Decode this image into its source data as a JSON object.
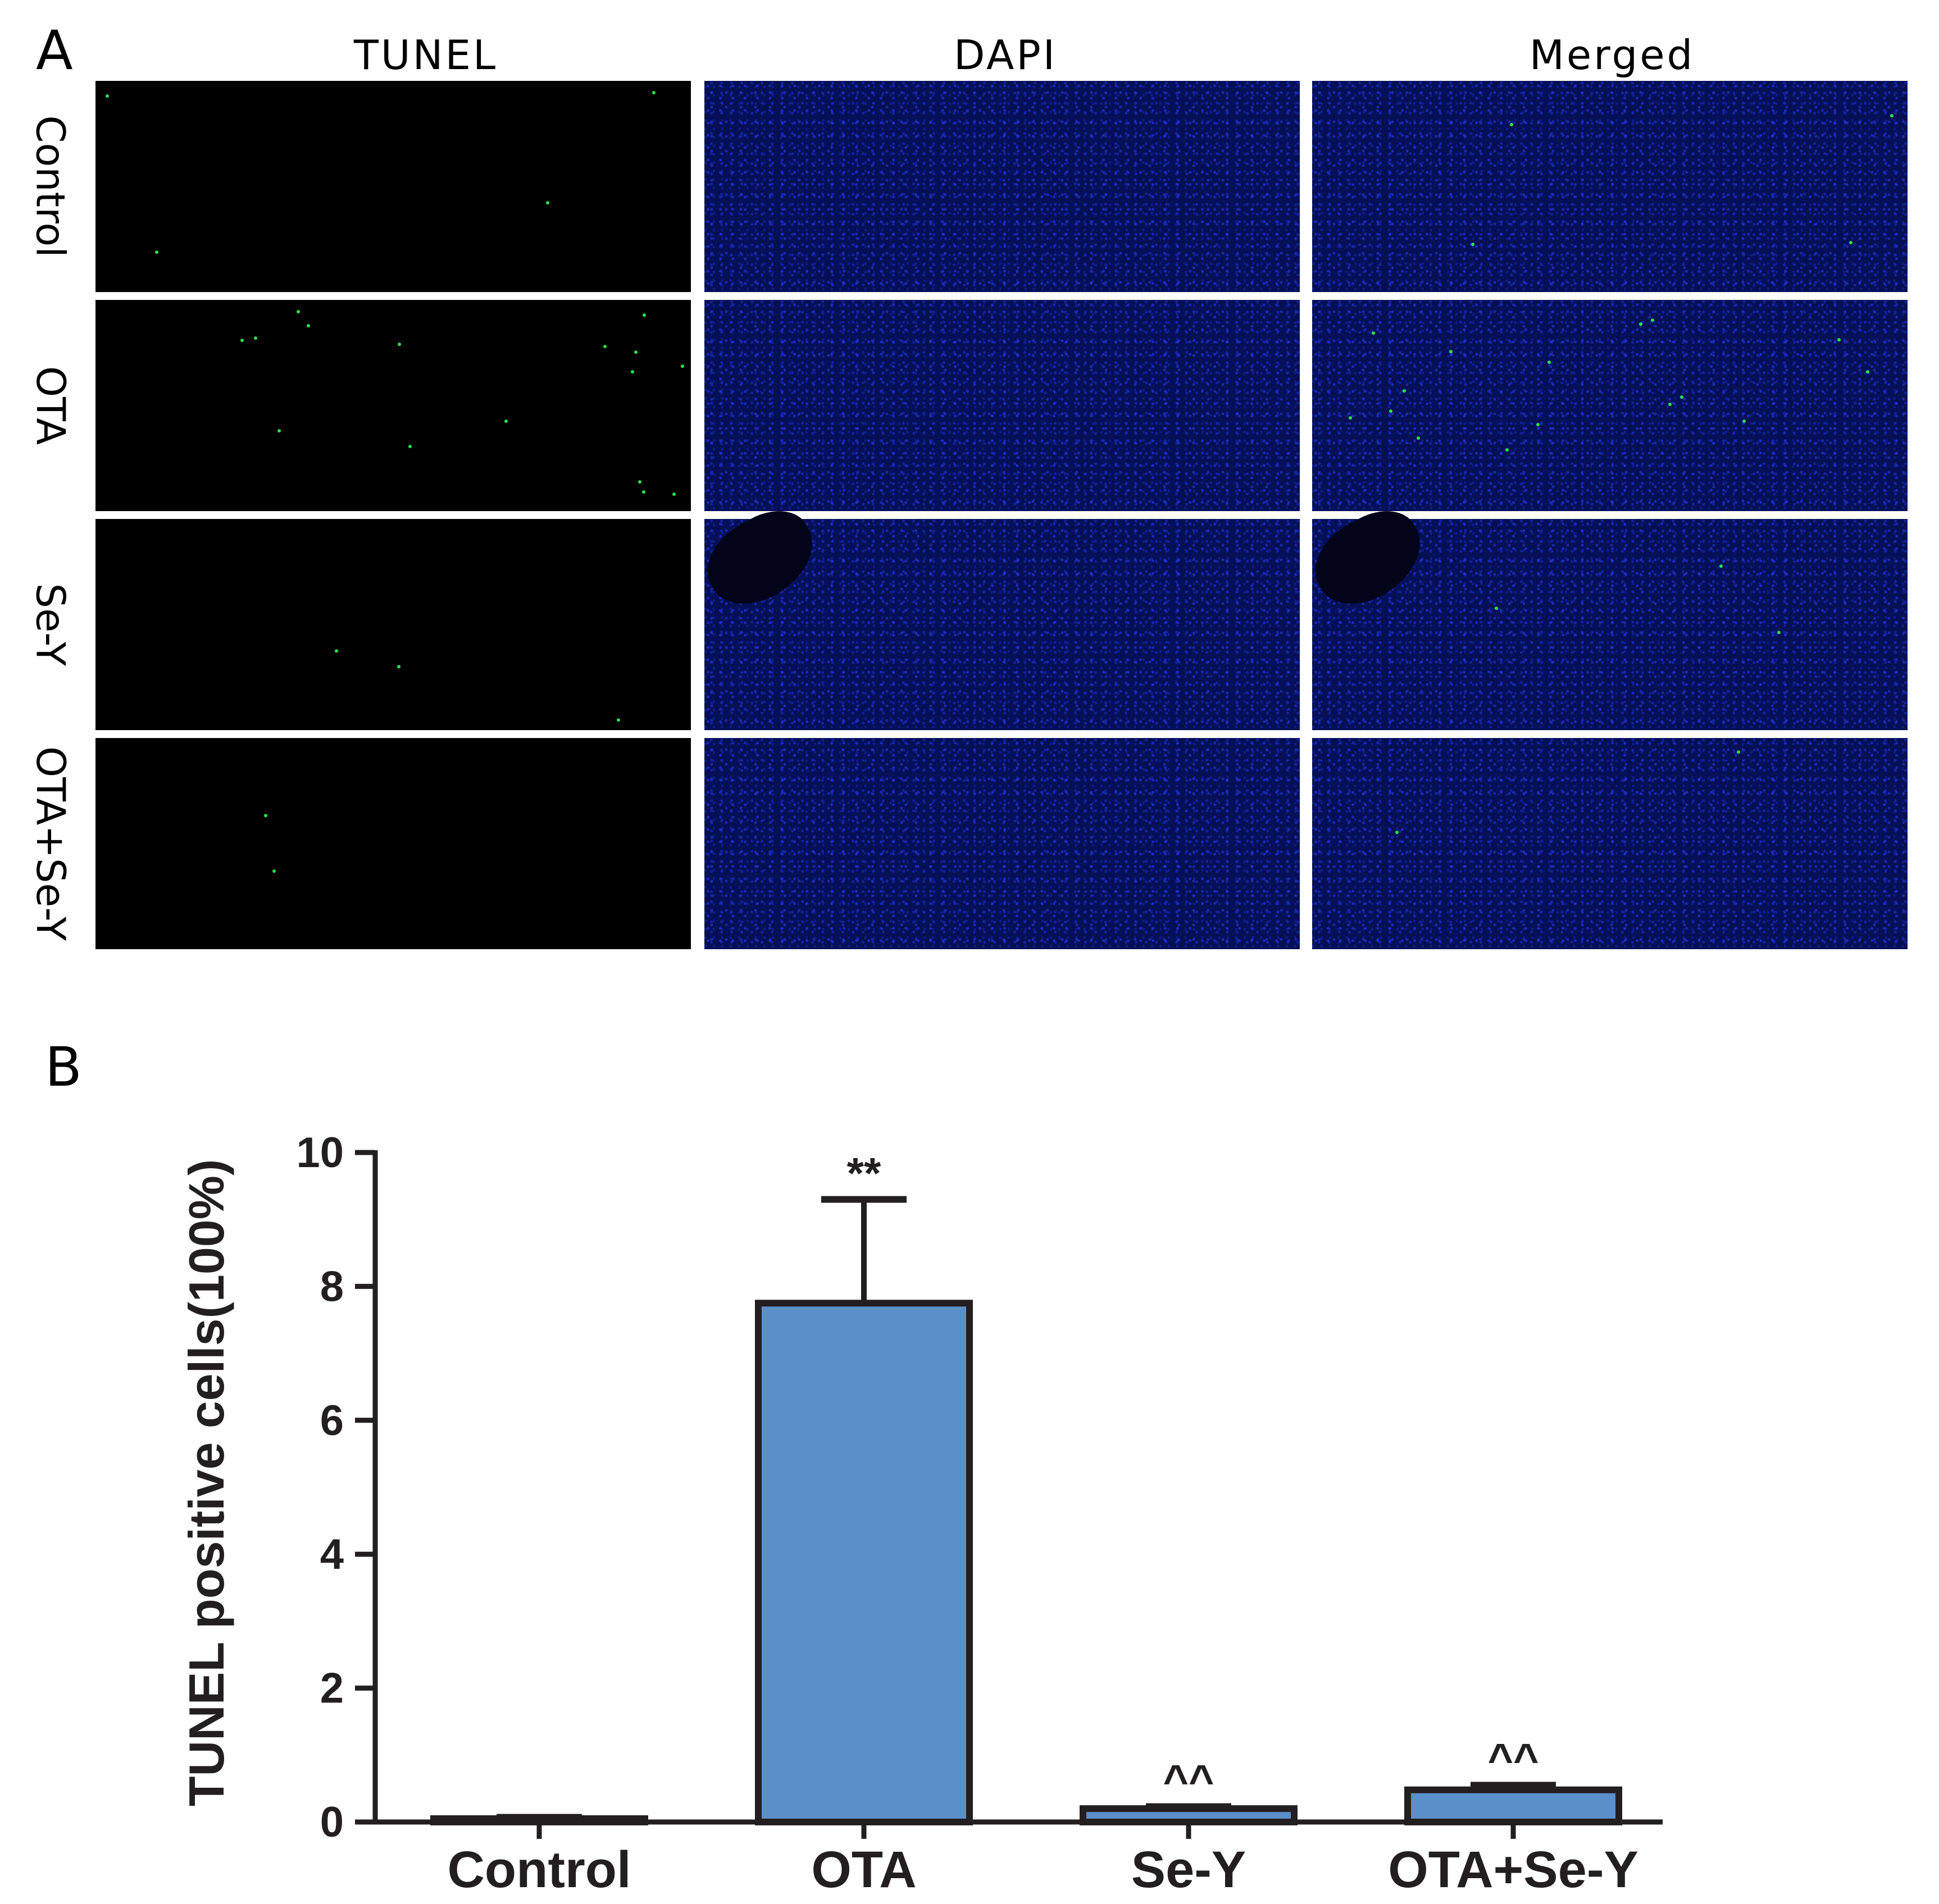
{
  "panel_a": {
    "letter": "A",
    "columns": [
      "TUNEL",
      "DAPI",
      "Merged"
    ],
    "rows": [
      "Control",
      "OTA",
      "Se-Y",
      "OTA+Se-Y"
    ],
    "colors": {
      "tunel_background": "#000000",
      "tunel_signal": "#29e84a",
      "dapi_nuclei": "#2338ff"
    }
  },
  "panel_b": {
    "letter": "B"
  },
  "chart_data": {
    "type": "bar",
    "title": "",
    "xlabel": "",
    "ylabel": "TUNEL positive cells(100%)",
    "categories": [
      "Control",
      "OTA",
      "Se-Y",
      "OTA+Se-Y"
    ],
    "values": [
      0.05,
      7.75,
      0.2,
      0.48
    ],
    "errors": [
      0.02,
      1.55,
      0.03,
      0.07
    ],
    "annotations": [
      "",
      "**",
      "^^",
      "^^"
    ],
    "ylim": [
      0,
      10
    ],
    "yticks": [
      "0",
      "2",
      "4",
      "6",
      "8",
      "10"
    ],
    "grid": false,
    "bar_color": "#5b8fca",
    "edge_color": "#231f20"
  }
}
